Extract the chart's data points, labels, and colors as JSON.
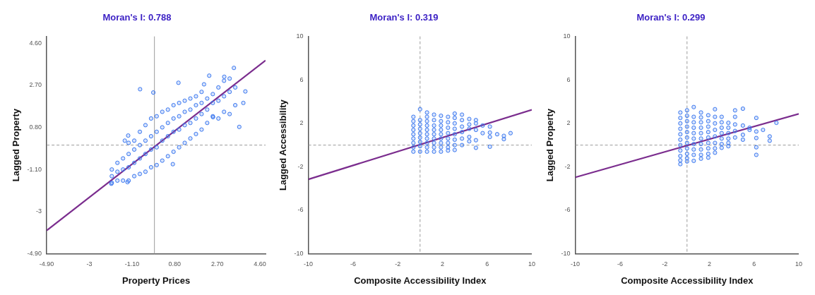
{
  "chart_data": [
    {
      "type": "scatter",
      "title": "Moran's I: 0.788",
      "xlabel": "Property Prices",
      "ylabel": "Lagged Property",
      "xlim": [
        -4.9,
        4.85
      ],
      "ylim": [
        -4.9,
        4.9
      ],
      "xticks": [
        {
          "value": -4.9,
          "label": "-4.90"
        },
        -3,
        {
          "value": -1.1,
          "label": "-1.10"
        },
        {
          "value": 0.8,
          "label": "0.80"
        },
        {
          "value": 2.7,
          "label": "2.70"
        },
        {
          "value": 4.6,
          "label": "4.60"
        }
      ],
      "yticks": [
        {
          "value": -4.9,
          "label": "-4.90"
        },
        -3,
        {
          "value": -1.1,
          "label": "-1.10"
        },
        {
          "value": 0.8,
          "label": "0.80"
        },
        {
          "value": 2.7,
          "label": "2.70"
        },
        {
          "value": 4.6,
          "label": "4.60"
        }
      ],
      "grid": false,
      "legend": false,
      "marker": "circle",
      "ref_lines": [
        {
          "axis": "x",
          "value": -0.1,
          "color": "#9a9a9a",
          "line_style": "solid"
        },
        {
          "axis": "y",
          "value": 0,
          "color": "#9a9a9a",
          "line_style": "dashed"
        }
      ],
      "series": [
        {
          "color": "#3b78f0",
          "x": [
            -2.0,
            -2.0,
            -2.0,
            -1.75,
            -1.75,
            -1.75,
            -1.5,
            -1.5,
            -1.5,
            -1.25,
            -1.25,
            -1.25,
            -1.25,
            -1.0,
            -1.0,
            -1.0,
            -1.0,
            -0.75,
            -0.75,
            -0.75,
            -0.75,
            -0.5,
            -0.5,
            -0.5,
            -0.5,
            -0.25,
            -0.25,
            -0.25,
            -0.25,
            0,
            0,
            0,
            0,
            0.25,
            0.25,
            0.25,
            0.25,
            0.5,
            0.5,
            0.5,
            0.5,
            0.75,
            0.75,
            0.75,
            0.75,
            1.0,
            1.0,
            1.0,
            1.0,
            1.25,
            1.25,
            1.25,
            1.25,
            1.5,
            1.5,
            1.5,
            1.5,
            1.75,
            1.75,
            1.75,
            1.75,
            2.0,
            2.0,
            2.0,
            2.0,
            2.25,
            2.25,
            2.25,
            2.5,
            2.5,
            2.5,
            2.75,
            2.75,
            2.75,
            3.0,
            3.0,
            3.0,
            3.25,
            3.25,
            3.25,
            3.5,
            3.5,
            -0.74,
            -0.15,
            0.97,
            3.44,
            0.72,
            -1.3,
            -2.02,
            3.95,
            3.68,
            3.86,
            2.34,
            -1.42,
            -1.27,
            2.11,
            3.01,
            2.51
          ],
          "values": [
            -1.7,
            -1.4,
            -1.1,
            -1.6,
            -1.2,
            -0.8,
            -1.6,
            -1.1,
            -0.6,
            -1.6,
            -1.0,
            -0.4,
            0.1,
            -1.4,
            -0.8,
            -0.2,
            0.2,
            -1.3,
            -0.6,
            0.0,
            0.6,
            -1.2,
            -0.4,
            0.2,
            0.9,
            -1.0,
            -0.2,
            0.4,
            1.2,
            -0.9,
            -0.1,
            0.6,
            1.3,
            -0.7,
            0.2,
            0.8,
            1.5,
            -0.5,
            0.4,
            1.0,
            1.6,
            -0.3,
            0.6,
            1.2,
            1.8,
            -0.1,
            0.7,
            1.3,
            1.9,
            0.1,
            0.9,
            1.5,
            2.0,
            0.3,
            1.0,
            1.6,
            2.1,
            0.5,
            1.2,
            1.8,
            2.2,
            0.7,
            1.4,
            1.9,
            2.4,
            1.0,
            1.6,
            2.1,
            1.3,
            1.9,
            2.3,
            1.2,
            2.0,
            2.6,
            1.5,
            2.2,
            2.9,
            1.4,
            2.4,
            3.0,
            1.8,
            2.6,
            2.52,
            2.37,
            2.81,
            3.48,
            -0.86,
            -1.67,
            -1.74,
            2.42,
            0.82,
            1.9,
            3.13,
            0.2,
            0.43,
            2.74,
            3.08,
            1.26
          ]
        },
        {
          "type": "line",
          "color": "#7b2d8e",
          "x": [
            -4.9,
            4.85
          ],
          "values": [
            -3.85,
            3.82
          ],
          "marker": "none"
        }
      ]
    },
    {
      "type": "scatter",
      "title": "Moran's I: 0.319",
      "xlabel": "Composite Accessibility Index",
      "ylabel": "Lagged Accessibility",
      "xlim": [
        -10,
        10
      ],
      "ylim": [
        -10,
        10
      ],
      "xticks": [
        -10,
        -6,
        -2,
        2,
        6,
        10
      ],
      "yticks": [
        -10,
        -6,
        -2,
        2,
        6,
        10
      ],
      "grid": false,
      "legend": false,
      "marker": "circle",
      "ref_lines": [
        {
          "axis": "x",
          "value": 0,
          "color": "#9a9a9a",
          "line_style": "dashed"
        },
        {
          "axis": "y",
          "value": 0,
          "color": "#9a9a9a",
          "line_style": "dashed"
        }
      ],
      "series": [
        {
          "color": "#3b78f0",
          "x": [
            -0.6,
            -0.6,
            -0.6,
            -0.6,
            -0.6,
            -0.6,
            -0.6,
            -0.6,
            -0.6,
            0,
            0,
            0,
            0,
            0,
            0,
            0,
            0,
            0,
            0.62,
            0.62,
            0.62,
            0.62,
            0.62,
            0.62,
            0.62,
            0.62,
            0.62,
            0.62,
            1.25,
            1.25,
            1.25,
            1.25,
            1.25,
            1.25,
            1.25,
            1.25,
            1.25,
            1.87,
            1.87,
            1.87,
            1.87,
            1.87,
            1.87,
            1.87,
            1.87,
            1.87,
            2.5,
            2.5,
            2.5,
            2.5,
            2.5,
            2.5,
            2.5,
            2.5,
            3.1,
            3.1,
            3.1,
            3.1,
            3.1,
            3.1,
            3.1,
            3.1,
            3.75,
            3.75,
            3.75,
            3.75,
            3.75,
            3.75,
            4.4,
            4.4,
            4.4,
            4.4,
            4.4,
            5.0,
            5.0,
            5.0,
            5.0,
            5.0,
            5.6,
            5.6,
            6.25,
            6.25,
            6.25,
            6.25,
            6.9,
            7.5,
            7.5,
            8.1
          ],
          "values": [
            2.6,
            2.2,
            1.8,
            1.4,
            1.0,
            0.6,
            0.2,
            -0.2,
            -0.6,
            3.3,
            2.3,
            1.9,
            1.5,
            1.1,
            0.7,
            0.3,
            -0.1,
            -0.6,
            3.0,
            2.6,
            2.2,
            1.8,
            1.4,
            1.0,
            0.6,
            0.2,
            -0.2,
            -0.6,
            2.8,
            2.3,
            1.8,
            1.4,
            1.0,
            0.6,
            0.2,
            -0.2,
            -0.6,
            2.7,
            2.2,
            1.8,
            1.4,
            1.0,
            0.6,
            0.2,
            -0.2,
            -0.6,
            2.6,
            2.1,
            1.6,
            1.1,
            0.6,
            0.2,
            -0.2,
            -0.5,
            2.9,
            2.5,
            2.0,
            1.5,
            1.0,
            0.5,
            0.0,
            -0.45,
            2.8,
            2.3,
            1.7,
            1.2,
            0.6,
            0.0,
            2.4,
            1.9,
            1.5,
            0.75,
            0.35,
            2.3,
            2.0,
            1.4,
            0.45,
            -0.25,
            1.8,
            1.1,
            1.7,
            1.15,
            0.75,
            -0.15,
            1.0,
            0.85,
            0.55,
            1.1
          ]
        },
        {
          "type": "line",
          "color": "#7b2d8e",
          "x": [
            -10,
            10
          ],
          "values": [
            -3.15,
            3.25
          ],
          "marker": "none"
        }
      ]
    },
    {
      "type": "scatter",
      "title": "Moran's I: 0.299",
      "xlabel": "Composite Accessibility Index",
      "ylabel": "Lagged Property",
      "xlim": [
        -10,
        10
      ],
      "ylim": [
        -10,
        10
      ],
      "xticks": [
        -10,
        -6,
        -2,
        2,
        6,
        10
      ],
      "yticks": [
        -10,
        -6,
        -2,
        2,
        6,
        10
      ],
      "grid": false,
      "legend": false,
      "marker": "circle",
      "ref_lines": [
        {
          "axis": "x",
          "value": 0,
          "color": "#9a9a9a",
          "line_style": "dashed"
        },
        {
          "axis": "y",
          "value": 0,
          "color": "#9a9a9a",
          "line_style": "dashed"
        }
      ],
      "series": [
        {
          "color": "#3b78f0",
          "x": [
            -0.6,
            -0.6,
            -0.6,
            -0.6,
            -0.6,
            -0.6,
            -0.6,
            -0.6,
            -0.6,
            -0.6,
            -0.6,
            0,
            0,
            0,
            0,
            0,
            0,
            0,
            0,
            0,
            0,
            0,
            0.6,
            0.6,
            0.6,
            0.6,
            0.6,
            0.6,
            0.6,
            0.6,
            0.6,
            0.6,
            1.25,
            1.25,
            1.25,
            1.25,
            1.25,
            1.25,
            1.25,
            1.25,
            1.25,
            1.25,
            1.9,
            1.9,
            1.9,
            1.9,
            1.9,
            1.9,
            1.9,
            1.9,
            1.9,
            2.5,
            2.5,
            2.5,
            2.5,
            2.5,
            2.5,
            2.5,
            2.5,
            3.1,
            3.1,
            3.1,
            3.1,
            3.1,
            3.1,
            3.1,
            3.7,
            3.7,
            3.7,
            3.7,
            3.7,
            3.7,
            4.3,
            4.3,
            4.3,
            4.3,
            4.3,
            5.0,
            5.0,
            5.0,
            5.0,
            5.6,
            5.6,
            6.2,
            6.2,
            6.2,
            6.2,
            6.2,
            6.8,
            7.4,
            7.4,
            8.0
          ],
          "values": [
            3.0,
            2.5,
            2.0,
            1.5,
            1.0,
            0.5,
            0.0,
            -0.5,
            -1.0,
            -1.4,
            -1.75,
            3.2,
            2.7,
            2.2,
            1.7,
            1.2,
            0.7,
            0.2,
            -0.3,
            -0.8,
            -1.2,
            -1.5,
            3.5,
            2.6,
            2.1,
            1.6,
            1.1,
            0.6,
            0.1,
            -0.4,
            -0.9,
            -1.45,
            3.0,
            2.55,
            2.1,
            1.6,
            1.1,
            0.6,
            0.1,
            -0.4,
            -0.9,
            -1.25,
            2.75,
            2.2,
            1.7,
            1.2,
            0.7,
            0.2,
            -0.3,
            -0.8,
            -1.15,
            3.3,
            2.6,
            2.0,
            1.4,
            0.8,
            0.2,
            -0.3,
            -0.7,
            2.6,
            2.1,
            1.6,
            1.1,
            0.6,
            0.1,
            -0.25,
            2.05,
            1.6,
            1.1,
            0.6,
            0.2,
            -0.1,
            3.2,
            2.6,
            1.9,
            1.3,
            0.7,
            3.35,
            1.8,
            0.95,
            0.5,
            1.6,
            1.4,
            2.5,
            1.25,
            0.65,
            -0.2,
            -0.9,
            1.4,
            0.8,
            0.4,
            2.05
          ]
        },
        {
          "type": "line",
          "color": "#7b2d8e",
          "x": [
            -10,
            10
          ],
          "values": [
            -2.96,
            2.88
          ],
          "marker": "none"
        }
      ]
    }
  ]
}
